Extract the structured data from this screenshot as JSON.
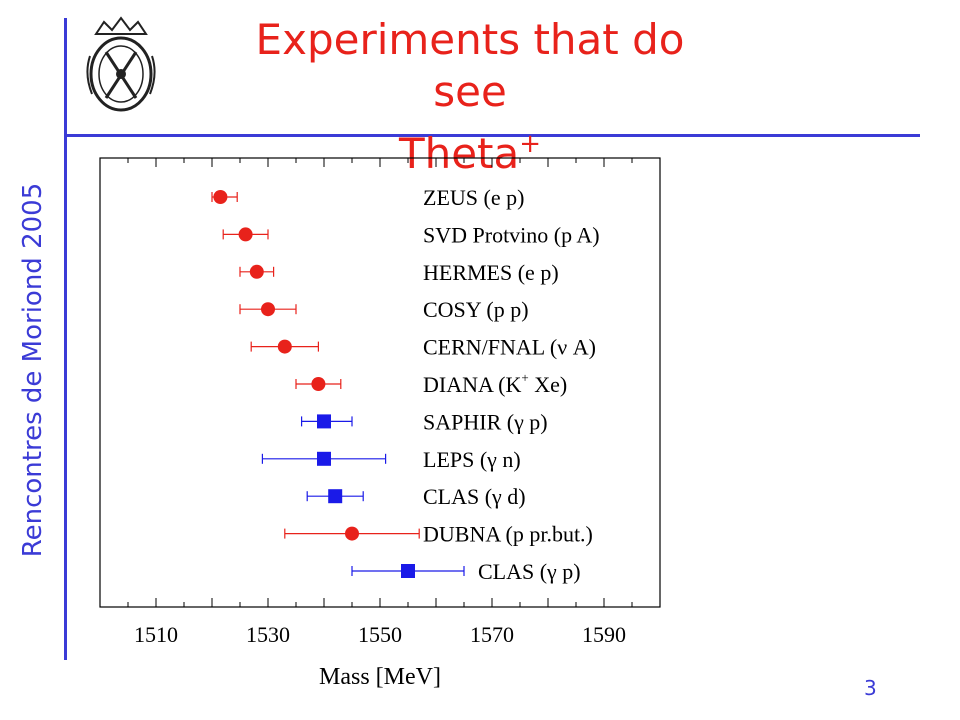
{
  "slide": {
    "title_line1": "Experiments that do see",
    "title_line2": "Theta",
    "title_sup": "+",
    "side_text": "Rencontres de Moriond 2005",
    "page_number": "3",
    "logo_icon": "crest-logo-icon",
    "accent_color": "#3b3bd6",
    "title_color": "#e8221b"
  },
  "chart_data": {
    "type": "scatter",
    "title": "",
    "xlabel": "Mass [MeV]",
    "ylabel": "",
    "xlim": [
      1500,
      1600
    ],
    "xticks": [
      1510,
      1530,
      1550,
      1570,
      1590
    ],
    "grid": false,
    "series": [
      {
        "experiment": "ZEUS (e p)",
        "mass": 1521.5,
        "err_low": 1.5,
        "err_high": 3.0,
        "marker": "circle",
        "color": "#e8221b"
      },
      {
        "experiment": "SVD Protvino (p A)",
        "mass": 1526,
        "err_low": 4,
        "err_high": 4,
        "marker": "circle",
        "color": "#e8221b"
      },
      {
        "experiment": "HERMES (e p)",
        "mass": 1528,
        "err_low": 3,
        "err_high": 3,
        "marker": "circle",
        "color": "#e8221b"
      },
      {
        "experiment": "COSY (p p)",
        "mass": 1530,
        "err_low": 5,
        "err_high": 5,
        "marker": "circle",
        "color": "#e8221b"
      },
      {
        "experiment": "CERN/FNAL (ν A)",
        "mass": 1533,
        "err_low": 6,
        "err_high": 6,
        "marker": "circle",
        "color": "#e8221b"
      },
      {
        "experiment": "DIANA (K",
        "experiment_sup": "+",
        "experiment_tail": " Xe)",
        "mass": 1539,
        "err_low": 4,
        "err_high": 4,
        "marker": "circle",
        "color": "#e8221b"
      },
      {
        "experiment": "SAPHIR (γ p)",
        "mass": 1540,
        "err_low": 4,
        "err_high": 5,
        "marker": "square",
        "color": "#1a1ae8"
      },
      {
        "experiment": "LEPS (γ n)",
        "mass": 1540,
        "err_low": 11,
        "err_high": 11,
        "marker": "square",
        "color": "#1a1ae8"
      },
      {
        "experiment": "CLAS (γ d)",
        "mass": 1542,
        "err_low": 5,
        "err_high": 5,
        "marker": "square",
        "color": "#1a1ae8"
      },
      {
        "experiment": "DUBNA (p pr.but.)",
        "mass": 1545,
        "err_low": 12,
        "err_high": 12,
        "marker": "circle",
        "color": "#e8221b"
      },
      {
        "experiment": "CLAS (γ p)",
        "mass": 1555,
        "err_low": 10,
        "err_high": 10,
        "marker": "square",
        "color": "#1a1ae8"
      }
    ]
  }
}
